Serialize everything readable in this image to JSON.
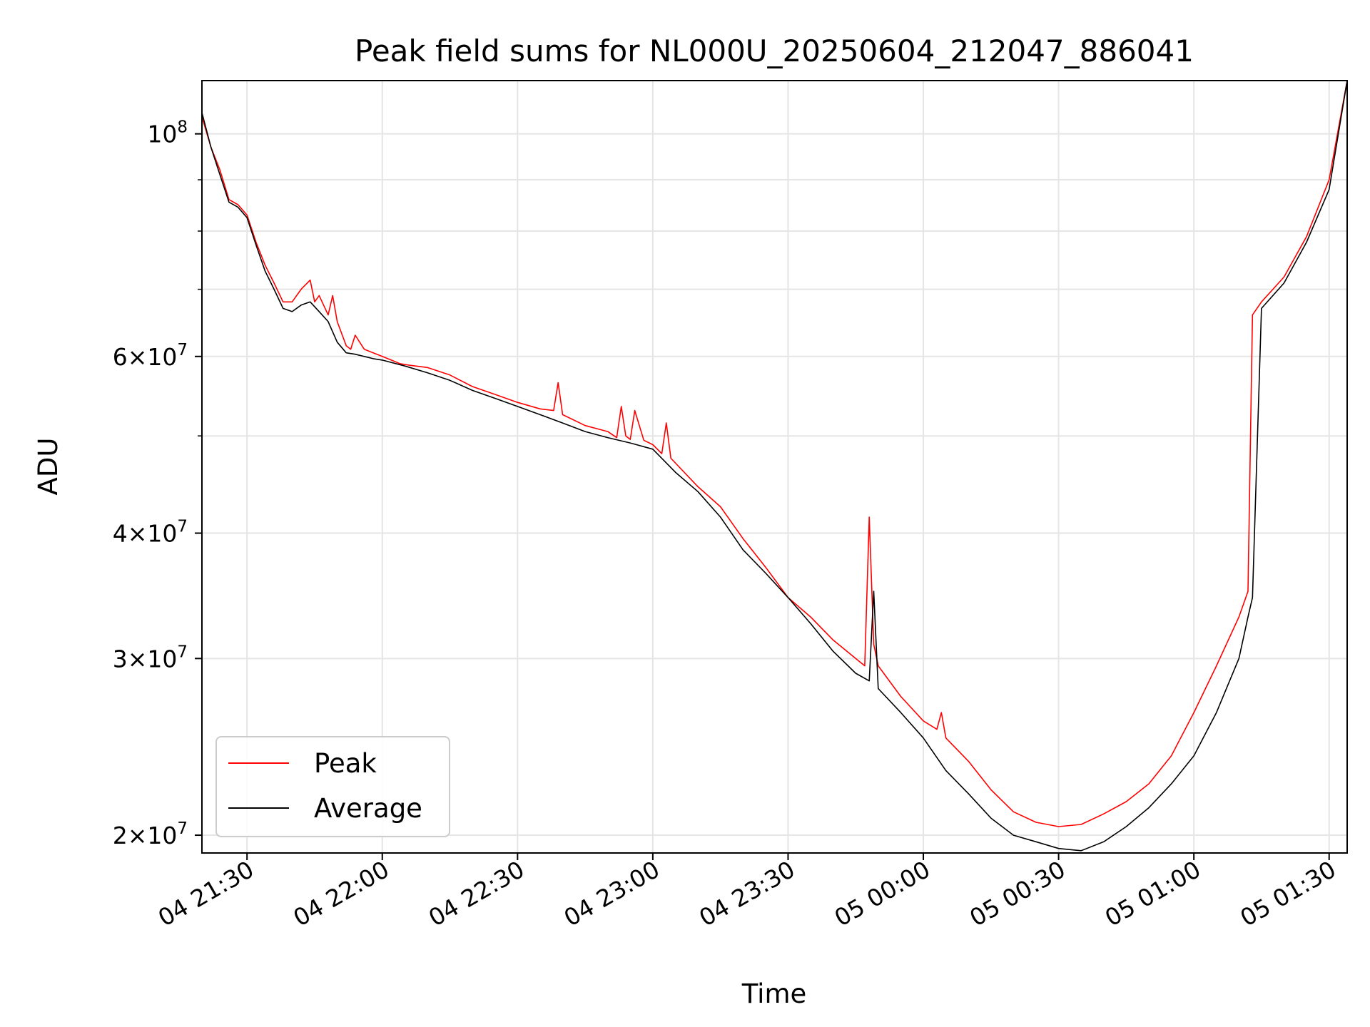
{
  "chart_data": {
    "type": "line",
    "title": "Peak field sums for NL000U_20250604_212047_886041",
    "xlabel": "Time",
    "ylabel": "ADU",
    "y_scale": "log",
    "x_unit": "time (day hh:mm)",
    "xlim": [
      "04 21:20",
      "05 01:34"
    ],
    "ylim": [
      19200000,
      113000000
    ],
    "grid": true,
    "legend_position": "lower-left",
    "x_ticks": [
      {
        "label": "04 21:30",
        "value": "04 21:30"
      },
      {
        "label": "04 22:00",
        "value": "04 22:00"
      },
      {
        "label": "04 22:30",
        "value": "04 22:30"
      },
      {
        "label": "04 23:00",
        "value": "04 23:00"
      },
      {
        "label": "04 23:30",
        "value": "04 23:30"
      },
      {
        "label": "05 00:00",
        "value": "05 00:00"
      },
      {
        "label": "05 00:30",
        "value": "05 00:30"
      },
      {
        "label": "05 01:00",
        "value": "05 01:00"
      },
      {
        "label": "05 01:30",
        "value": "05 01:30"
      }
    ],
    "y_ticks": [
      {
        "value": 100000000,
        "mantissa": "",
        "base": "10",
        "exp": "8"
      },
      {
        "value": 60000000,
        "mantissa": "6",
        "base": "10",
        "exp": "7"
      },
      {
        "value": 40000000,
        "mantissa": "4",
        "base": "10",
        "exp": "7"
      },
      {
        "value": 30000000,
        "mantissa": "3",
        "base": "10",
        "exp": "7"
      },
      {
        "value": 20000000,
        "mantissa": "2",
        "base": "10",
        "exp": "7"
      }
    ],
    "y_minor_ticks": [
      50000000,
      70000000,
      80000000,
      90000000
    ],
    "series": [
      {
        "name": "Peak",
        "color": "#ff0000",
        "x": [
          "04 21:20",
          "04 21:22",
          "04 21:24",
          "04 21:26",
          "04 21:28",
          "04 21:30",
          "04 21:32",
          "04 21:34",
          "04 21:36",
          "04 21:38",
          "04 21:40",
          "04 21:42",
          "04 21:44",
          "04 21:45",
          "04 21:46",
          "04 21:48",
          "04 21:49",
          "04 21:50",
          "04 21:52",
          "04 21:53",
          "04 21:54",
          "04 21:56",
          "04 21:58",
          "04 22:00",
          "04 22:02",
          "04 22:04",
          "04 22:06",
          "04 22:10",
          "04 22:15",
          "04 22:20",
          "04 22:25",
          "04 22:30",
          "04 22:35",
          "04 22:38",
          "04 22:39",
          "04 22:40",
          "04 22:45",
          "04 22:50",
          "04 22:52",
          "04 22:53",
          "04 22:54",
          "04 22:55",
          "04 22:56",
          "04 22:58",
          "04 23:00",
          "04 23:02",
          "04 23:03",
          "04 23:04",
          "04 23:10",
          "04 23:15",
          "04 23:20",
          "04 23:25",
          "04 23:30",
          "04 23:35",
          "04 23:40",
          "04 23:45",
          "04 23:47",
          "04 23:48",
          "04 23:49",
          "04 23:50",
          "04 23:55",
          "05 00:00",
          "05 00:03",
          "05 00:04",
          "05 00:05",
          "05 00:10",
          "05 00:15",
          "05 00:20",
          "05 00:25",
          "05 00:30",
          "05 00:35",
          "05 00:40",
          "05 00:45",
          "05 00:50",
          "05 00:55",
          "05 01:00",
          "05 01:05",
          "05 01:10",
          "05 01:12",
          "05 01:13",
          "05 01:14",
          "05 01:15",
          "05 01:20",
          "05 01:25",
          "05 01:30",
          "05 01:34"
        ],
        "values": [
          104000000,
          97000000,
          92000000,
          86000000,
          85000000,
          83000000,
          78000000,
          74000000,
          71000000,
          68000000,
          68000000,
          70000000,
          71500000,
          68000000,
          69000000,
          66000000,
          69000000,
          65000000,
          61500000,
          61000000,
          63000000,
          61000000,
          60500000,
          60000000,
          59500000,
          59000000,
          58800000,
          58500000,
          57500000,
          56000000,
          55000000,
          54000000,
          53200000,
          53000000,
          56500000,
          52500000,
          51200000,
          50500000,
          49800000,
          53500000,
          50000000,
          49600000,
          53000000,
          49500000,
          49000000,
          48000000,
          51500000,
          47500000,
          44500000,
          42500000,
          39500000,
          37000000,
          34500000,
          33000000,
          31300000,
          30000000,
          29500000,
          41500000,
          31000000,
          29500000,
          27500000,
          26000000,
          25500000,
          26500000,
          25000000,
          23700000,
          22200000,
          21100000,
          20600000,
          20400000,
          20500000,
          21000000,
          21600000,
          22500000,
          24000000,
          26500000,
          29500000,
          33000000,
          35000000,
          66000000,
          67000000,
          68000000,
          72000000,
          79000000,
          90000000,
          113000000
        ]
      },
      {
        "name": "Average",
        "color": "#000000",
        "x": [
          "04 21:20",
          "04 21:22",
          "04 21:24",
          "04 21:26",
          "04 21:28",
          "04 21:30",
          "04 21:32",
          "04 21:34",
          "04 21:36",
          "04 21:38",
          "04 21:40",
          "04 21:42",
          "04 21:44",
          "04 21:46",
          "04 21:48",
          "04 21:50",
          "04 21:52",
          "04 21:54",
          "04 21:56",
          "04 21:58",
          "04 22:00",
          "04 22:05",
          "04 22:10",
          "04 22:15",
          "04 22:20",
          "04 22:25",
          "04 22:30",
          "04 22:35",
          "04 22:40",
          "04 22:45",
          "04 22:50",
          "04 22:55",
          "04 23:00",
          "04 23:05",
          "04 23:10",
          "04 23:15",
          "04 23:20",
          "04 23:25",
          "04 23:30",
          "04 23:35",
          "04 23:40",
          "04 23:45",
          "04 23:48",
          "04 23:49",
          "04 23:50",
          "04 23:55",
          "05 00:00",
          "05 00:05",
          "05 00:10",
          "05 00:15",
          "05 00:20",
          "05 00:25",
          "05 00:30",
          "05 00:35",
          "05 00:40",
          "05 00:45",
          "05 00:50",
          "05 00:55",
          "05 01:00",
          "05 01:05",
          "05 01:10",
          "05 01:12",
          "05 01:13",
          "05 01:15",
          "05 01:20",
          "05 01:25",
          "05 01:30",
          "05 01:34"
        ],
        "values": [
          105000000,
          97000000,
          91000000,
          85500000,
          84500000,
          82500000,
          77500000,
          73000000,
          70000000,
          67000000,
          66500000,
          67500000,
          68000000,
          66500000,
          65000000,
          62000000,
          60500000,
          60300000,
          60000000,
          59700000,
          59500000,
          58700000,
          57800000,
          56800000,
          55500000,
          54500000,
          53500000,
          52500000,
          51500000,
          50500000,
          49800000,
          49200000,
          48500000,
          46000000,
          44000000,
          41500000,
          38500000,
          36500000,
          34500000,
          32500000,
          30500000,
          29000000,
          28500000,
          35000000,
          28000000,
          26500000,
          25000000,
          23200000,
          22000000,
          20800000,
          20000000,
          19700000,
          19400000,
          19300000,
          19700000,
          20400000,
          21300000,
          22500000,
          24000000,
          26500000,
          30000000,
          33000000,
          34500000,
          67000000,
          71000000,
          78000000,
          88000000,
          113000000
        ]
      }
    ]
  }
}
